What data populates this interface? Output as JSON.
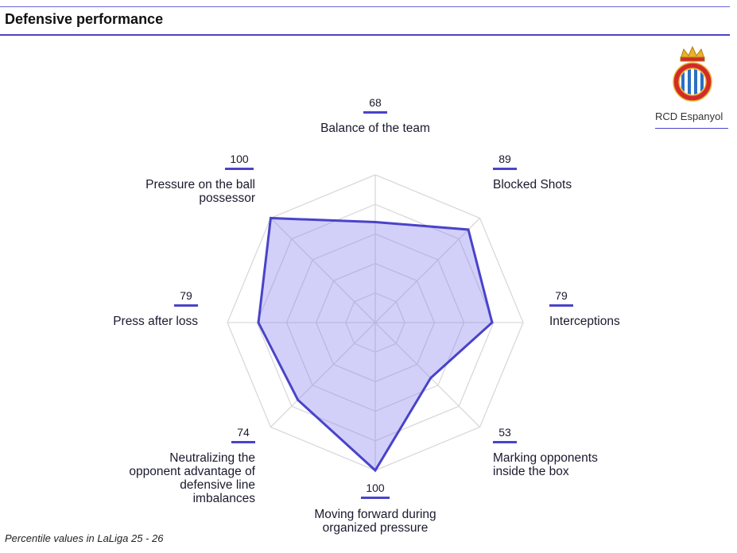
{
  "header": {
    "title": "Defensive performance"
  },
  "team": {
    "name": "RCD Espanyol",
    "logo": "rcd-espanyol-crest",
    "crest_text": "RCD ESPANYOL DE BARCELONA"
  },
  "footnote": "Percentile values in LaLiga 25 - 26",
  "colors": {
    "accent": "#4a43c9",
    "fill": "#8a83f0",
    "grid": "#d9d9d9",
    "crest_red": "#d42a2a",
    "crest_blue": "#2a6fc4",
    "crest_gold": "#e9b32a"
  },
  "chart_data": {
    "type": "radar",
    "scale": {
      "min": 0,
      "max": 100
    },
    "grid": true,
    "categories": [
      "Balance of the team",
      "Blocked Shots",
      "Interceptions",
      "Marking opponents inside the box",
      "Moving forward during organized pressure",
      "Neutralizing the opponent advantage of defensive line imbalances",
      "Press after loss",
      "Pressure on the ball possessor"
    ],
    "series": [
      {
        "values": [
          68,
          89,
          79,
          53,
          100,
          74,
          79,
          100
        ]
      }
    ]
  }
}
